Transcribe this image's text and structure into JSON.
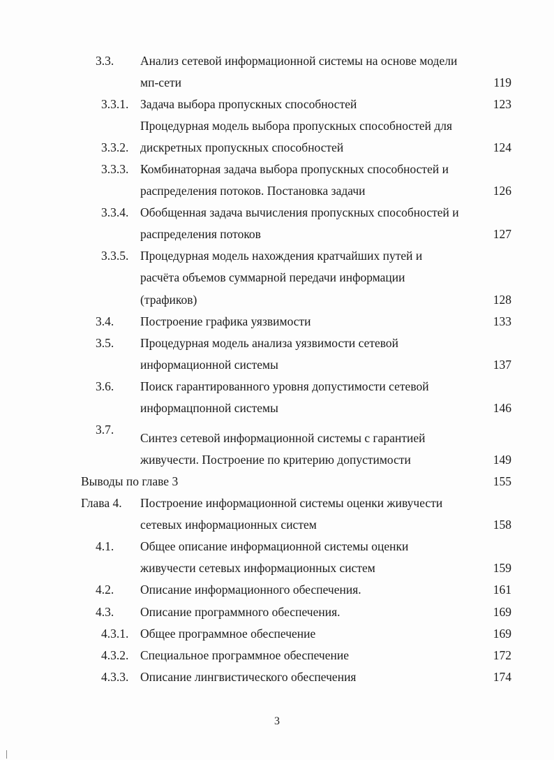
{
  "toc": {
    "lines": [
      {
        "num": "3.3.",
        "lvl": "l1",
        "text": "Анализ сетевой информационной системы на основе модели",
        "page": ""
      },
      {
        "num": "",
        "lvl": "",
        "text": "мп-сети",
        "page": "119"
      },
      {
        "num": "3.3.1.",
        "lvl": "l2",
        "text": " Задача выбора пропускных способностей",
        "page": "123"
      },
      {
        "num": "",
        "lvl": "",
        "text": "Процедурная модель выбора пропускных способностей для",
        "page": ""
      },
      {
        "num": "3.3.2.",
        "lvl": "l2",
        "text": "дискретных пропускных способностей",
        "page": "124"
      },
      {
        "num": "3.3.3.",
        "lvl": "l2",
        "text": "Комбинаторная задача выбора пропускных способностей и",
        "page": ""
      },
      {
        "num": "",
        "lvl": "",
        "text": "распределения потоков. Постановка задачи",
        "page": "126"
      },
      {
        "num": "3.3.4.",
        "lvl": "l2",
        "text": "Обобщенная задача вычисления пропускных способностей и",
        "page": ""
      },
      {
        "num": "",
        "lvl": "",
        "text": "распределения потоков",
        "page": "127"
      },
      {
        "num": "3.3.5.",
        "lvl": "l2",
        "text": "Процедурная модель нахождения кратчайших путей и",
        "page": ""
      },
      {
        "num": "",
        "lvl": "",
        "text": "расчёта объемов суммарной передачи информации",
        "page": ""
      },
      {
        "num": "",
        "lvl": "",
        "text": "(трафиков)",
        "page": "128"
      },
      {
        "num": "3.4.",
        "lvl": "l1",
        "text": "Построение графика уязвимости",
        "page": "133"
      },
      {
        "num": "3.5.",
        "lvl": "l1",
        "text": "Процедурная модель анализа уязвимости сетевой",
        "page": ""
      },
      {
        "num": "",
        "lvl": "",
        "text": "информационной системы",
        "page": "137"
      },
      {
        "num": "3.6.",
        "lvl": "l1",
        "text": "Поиск гарантированного уровня допустимости сетевой",
        "page": ""
      },
      {
        "num": "",
        "lvl": "",
        "text": "информацпонной системы",
        "page": "146"
      },
      {
        "num": "3.7.",
        "lvl": "l1",
        "text": "Синтез сетевой информационной системы с гарантией",
        "page": ""
      },
      {
        "num": "",
        "lvl": "",
        "text": "живучести. Построение по критерию допустимости",
        "page": "149"
      },
      {
        "num": "",
        "lvl": "l0",
        "text": "Выводы по главе 3",
        "page": "155"
      },
      {
        "num": "Глава 4.",
        "lvl": "l0",
        "text": "Построение информационной системы оценки живучести",
        "page": ""
      },
      {
        "num": "",
        "lvl": "",
        "text": "сетевых информационных систем",
        "page": "158"
      },
      {
        "num": "4.1.",
        "lvl": "l1",
        "text": "Общее описание информационной системы оценки",
        "page": ""
      },
      {
        "num": "",
        "lvl": "",
        "text": "живучести сетевых информационных систем",
        "page": "159"
      },
      {
        "num": "4.2.",
        "lvl": "l1",
        "text": "Описание информационного обеспечения.",
        "page": "161"
      },
      {
        "num": "4.3.",
        "lvl": "l1",
        "text": "Описание программного обеспечения.",
        "page": "169"
      },
      {
        "num": "4.3.1.",
        "lvl": "l2",
        "text": "Общее программное обеспечение",
        "page": "169"
      },
      {
        "num": "4.3.2.",
        "lvl": "l2",
        "text": "Специальное программное обеспечение",
        "page": "172"
      },
      {
        "num": "4.3.3.",
        "lvl": "l2",
        "text": "Описание лингвистического обеспечения",
        "page": "174"
      }
    ]
  },
  "footer": {
    "page_number": "3"
  }
}
